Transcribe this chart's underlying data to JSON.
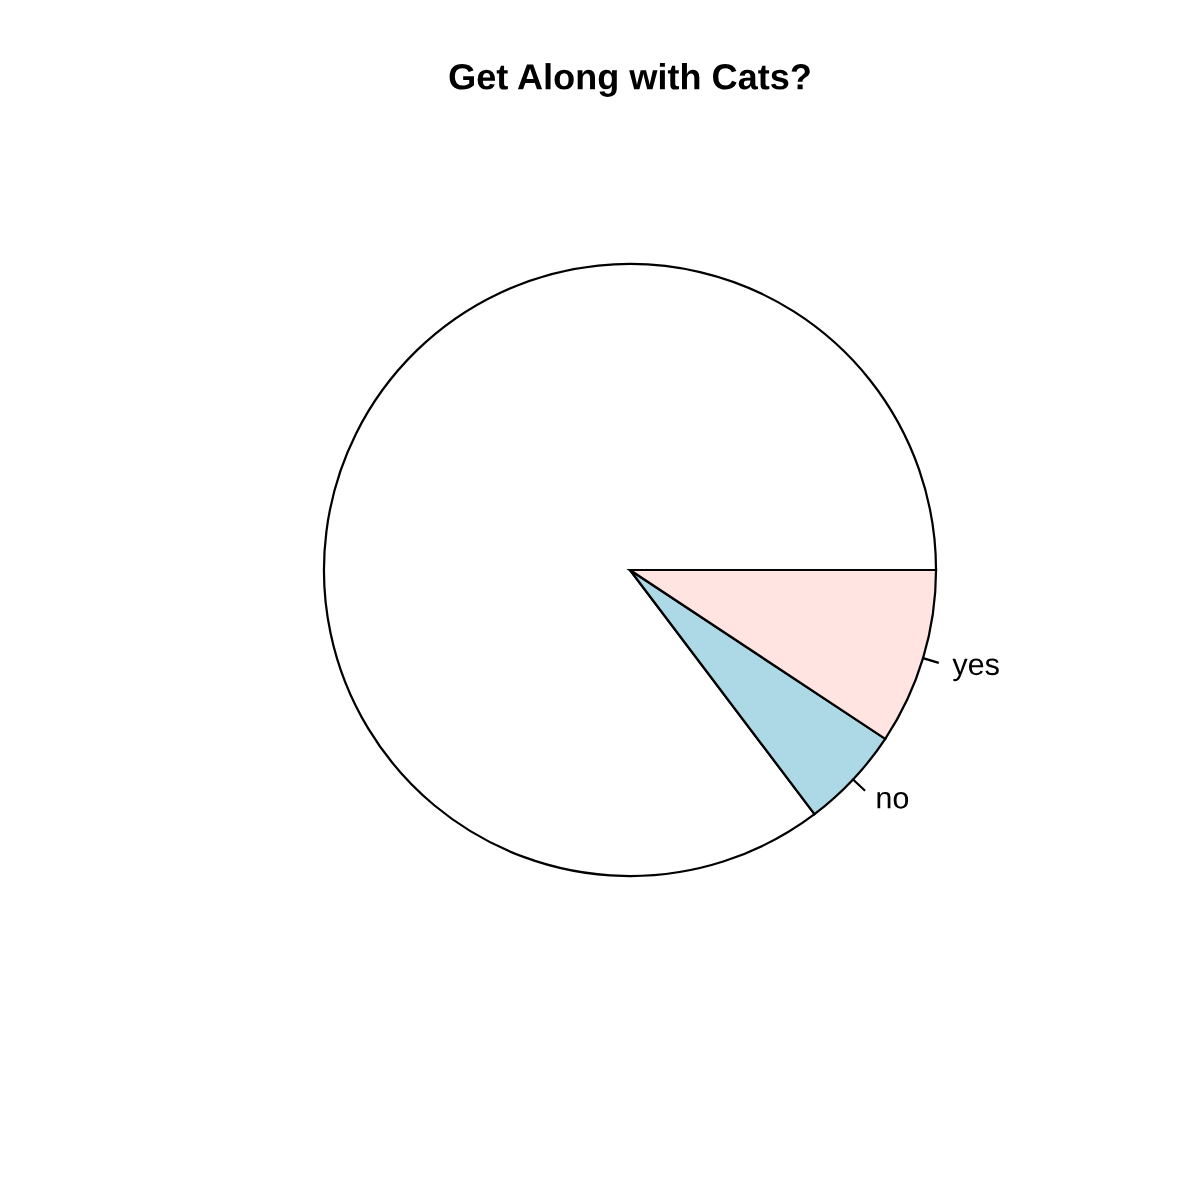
{
  "chart_data": {
    "type": "pie",
    "title": "Get Along with Cats?",
    "categories": [
      null,
      "no",
      "yes"
    ],
    "values": [
      85.3,
      5.4,
      9.3
    ],
    "colors": [
      "#ffffff",
      "#add8e6",
      "#ffe4e1"
    ]
  }
}
